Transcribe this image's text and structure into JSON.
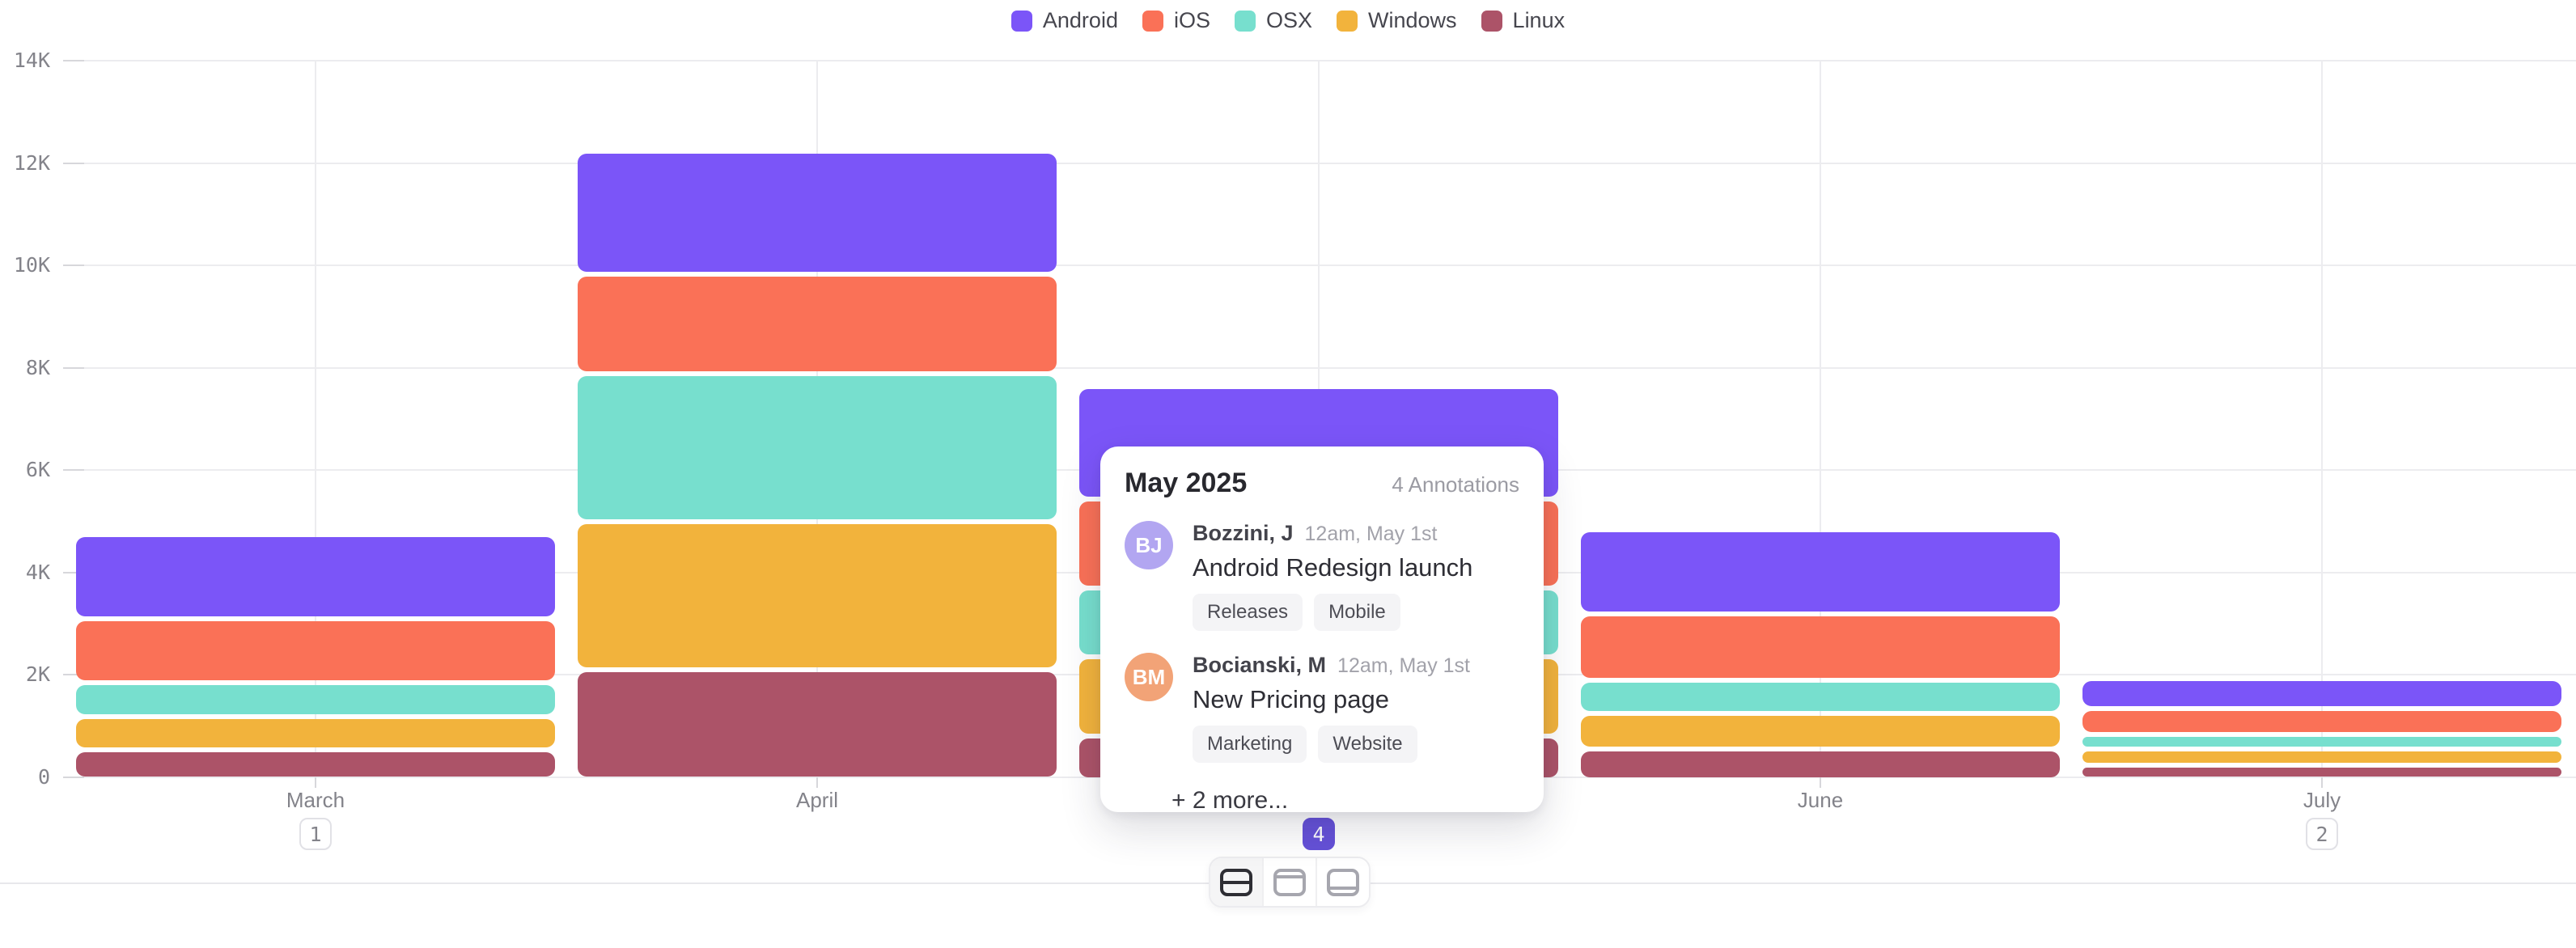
{
  "legend": {
    "items": [
      {
        "label": "Android",
        "color": "#7b55f8"
      },
      {
        "label": "iOS",
        "color": "#fa7157"
      },
      {
        "label": "OSX",
        "color": "#77dfce"
      },
      {
        "label": "Windows",
        "color": "#f2b33c"
      },
      {
        "label": "Linux",
        "color": "#ac5368"
      }
    ]
  },
  "chart_data": {
    "type": "bar",
    "subtype": "stacked-vertical",
    "title": "",
    "categories": [
      "March",
      "April",
      "May",
      "June",
      "July"
    ],
    "series": [
      {
        "name": "Android",
        "color": "#7b55f8",
        "values": [
          1550,
          2300,
          2100,
          1550,
          500
        ]
      },
      {
        "name": "iOS",
        "color": "#fa7157",
        "values": [
          1150,
          1850,
          1650,
          1200,
          400
        ]
      },
      {
        "name": "OSX",
        "color": "#77dfce",
        "values": [
          570,
          2800,
          1250,
          550,
          200
        ]
      },
      {
        "name": "Windows",
        "color": "#f2b33c",
        "values": [
          550,
          2800,
          1450,
          600,
          220
        ]
      },
      {
        "name": "Linux",
        "color": "#ac5368",
        "values": [
          490,
          2050,
          750,
          500,
          180
        ]
      }
    ],
    "stack_order": "legend order top-to-bottom (Android on top, Linux at bottom)",
    "ylim": [
      0,
      14000
    ],
    "grid": "horizontal lines every 2K, vertical line at each month center",
    "y_axis": {
      "ticks": [
        {
          "label": "14K",
          "value": 14000
        },
        {
          "label": "12K",
          "value": 12000
        },
        {
          "label": "10K",
          "value": 10000
        },
        {
          "label": "8K",
          "value": 8000
        },
        {
          "label": "6K",
          "value": 6000
        },
        {
          "label": "4K",
          "value": 4000
        },
        {
          "label": "2K",
          "value": 2000
        },
        {
          "label": "0",
          "value": 0
        }
      ]
    },
    "x_axis": {
      "annotation_badges": [
        {
          "category": "March",
          "count": "1",
          "selected": false
        },
        {
          "category": "May",
          "count": "4",
          "selected": true
        },
        {
          "category": "July",
          "count": "2",
          "selected": false
        }
      ]
    }
  },
  "popup": {
    "title": "May 2025",
    "count_label": "4 Annotations",
    "entries": [
      {
        "initials": "BJ",
        "avatar_color": "#b2a6f1",
        "name": "Bozzini, J",
        "time": "12am, May 1st",
        "title": "Android Redesign launch",
        "tags": [
          "Releases",
          "Mobile"
        ]
      },
      {
        "initials": "BM",
        "avatar_color": "#f2a377",
        "name": "Bocianski, M",
        "time": "12am, May 1st",
        "title": "New Pricing page",
        "tags": [
          "Marketing",
          "Website"
        ]
      }
    ],
    "more_label": "+ 2 more..."
  },
  "toolbar": {
    "buttons": [
      {
        "icon": "split-rows-icon",
        "selected": true
      },
      {
        "icon": "header-row-icon",
        "selected": false
      },
      {
        "icon": "footer-row-icon",
        "selected": false
      }
    ]
  },
  "colors": {
    "selected_badge": "#6551d8",
    "gridline": "#ececef",
    "axis_text": "#83838a",
    "background": "#ffffff"
  }
}
